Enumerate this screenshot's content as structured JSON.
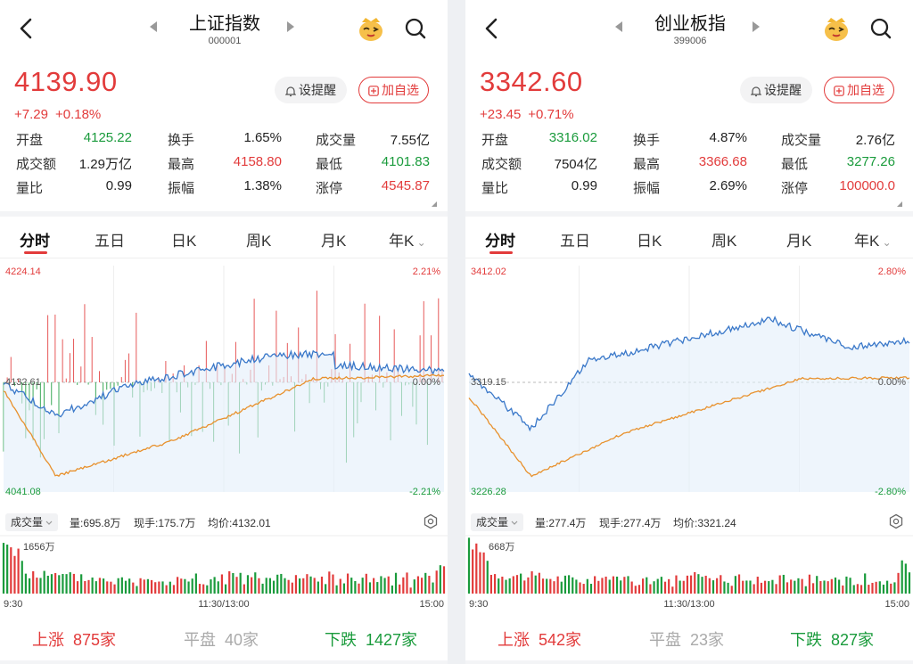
{
  "panels": [
    {
      "title": "上证指数",
      "code": "000001",
      "price": "4139.90",
      "change": "+7.29",
      "change_pct": "+0.18%",
      "buttons": {
        "alert": "设提醒",
        "add": "加自选"
      },
      "stats": [
        [
          {
            "label": "开盘",
            "value": "4125.22",
            "color": "green"
          },
          {
            "label": "换手",
            "value": "1.65%",
            "color": "black"
          },
          {
            "label": "成交量",
            "value": "7.55亿",
            "color": "black"
          }
        ],
        [
          {
            "label": "成交额",
            "value": "1.29万亿",
            "color": "black"
          },
          {
            "label": "最高",
            "value": "4158.80",
            "color": "red"
          },
          {
            "label": "最低",
            "value": "4101.83",
            "color": "green"
          }
        ],
        [
          {
            "label": "量比",
            "value": "0.99",
            "color": "black"
          },
          {
            "label": "振幅",
            "value": "1.38%",
            "color": "black"
          },
          {
            "label": "涨停",
            "value": "4545.87",
            "color": "red"
          }
        ]
      ],
      "tabs": [
        "分时",
        "五日",
        "日K",
        "周K",
        "月K",
        "年K"
      ],
      "chart": {
        "y_top": "4224.14",
        "y_bottom": "4041.08",
        "y_mid": "4132.61",
        "pct_top": "2.21%",
        "pct_mid": "0.00%",
        "pct_bottom": "-2.21%",
        "has_breadth_bars": true
      },
      "volume": {
        "selector": "成交量",
        "amount": "量:695.8万",
        "current": "现手:175.7万",
        "avg": "均价:4132.01",
        "max_label": "1656万",
        "time_start": "9:30",
        "time_mid": "11:30/13:00",
        "time_end": "15:00"
      },
      "breadth": {
        "up_label": "上涨",
        "up_count": "875家",
        "flat_label": "平盘",
        "flat_count": "40家",
        "down_label": "下跌",
        "down_count": "1427家"
      }
    },
    {
      "title": "创业板指",
      "code": "399006",
      "price": "3342.60",
      "change": "+23.45",
      "change_pct": "+0.71%",
      "buttons": {
        "alert": "设提醒",
        "add": "加自选"
      },
      "stats": [
        [
          {
            "label": "开盘",
            "value": "3316.02",
            "color": "green"
          },
          {
            "label": "换手",
            "value": "4.87%",
            "color": "black"
          },
          {
            "label": "成交量",
            "value": "2.76亿",
            "color": "black"
          }
        ],
        [
          {
            "label": "成交额",
            "value": "7504亿",
            "color": "black"
          },
          {
            "label": "最高",
            "value": "3366.68",
            "color": "red"
          },
          {
            "label": "最低",
            "value": "3277.26",
            "color": "green"
          }
        ],
        [
          {
            "label": "量比",
            "value": "0.99",
            "color": "black"
          },
          {
            "label": "振幅",
            "value": "2.69%",
            "color": "black"
          },
          {
            "label": "涨停",
            "value": "100000.0",
            "color": "red"
          }
        ]
      ],
      "tabs": [
        "分时",
        "五日",
        "日K",
        "周K",
        "月K",
        "年K"
      ],
      "chart": {
        "y_top": "3412.02",
        "y_bottom": "3226.28",
        "y_mid": "3319.15",
        "pct_top": "2.80%",
        "pct_mid": "0.00%",
        "pct_bottom": "-2.80%",
        "has_breadth_bars": false
      },
      "volume": {
        "selector": "成交量",
        "amount": "量:277.4万",
        "current": "现手:277.4万",
        "avg": "均价:3321.24",
        "max_label": "668万",
        "time_start": "9:30",
        "time_mid": "11:30/13:00",
        "time_end": "15:00"
      },
      "breadth": {
        "up_label": "上涨",
        "up_count": "542家",
        "flat_label": "平盘",
        "flat_count": "23家",
        "down_label": "下跌",
        "down_count": "827家"
      }
    }
  ],
  "colors": {
    "red": "#e23b3b",
    "green": "#1a9b3c",
    "price_line": "#3a78c9",
    "avg_line": "#e8912d",
    "flat": "#aaaaaa"
  },
  "icons": [
    "back-chevron-icon",
    "left-triangle-icon",
    "right-triangle-icon",
    "mascot-icon",
    "search-icon",
    "bell-icon",
    "plus-square-icon",
    "gear-icon",
    "chevron-down-icon"
  ]
}
